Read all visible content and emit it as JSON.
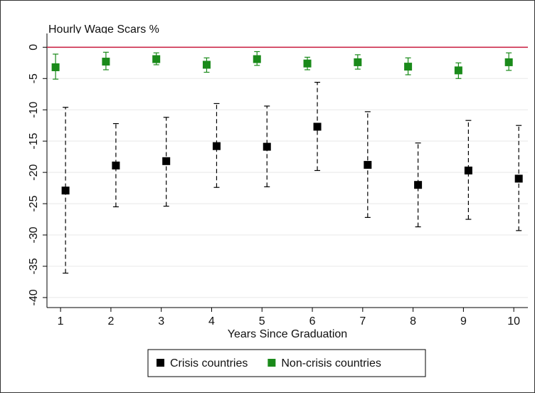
{
  "chart_data": {
    "type": "errorbar",
    "title": "Hourly Wage Scars %",
    "x_label": "Years Since Graduation",
    "x": [
      1,
      2,
      3,
      4,
      5,
      6,
      7,
      8,
      9,
      10
    ],
    "xlim": [
      0.73,
      10.28
    ],
    "xticks": [
      1,
      2,
      3,
      4,
      5,
      6,
      7,
      8,
      9,
      10
    ],
    "ylim": [
      -41.6,
      2.2
    ],
    "yticks": [
      0,
      -5,
      -10,
      -15,
      -20,
      -25,
      -30,
      -35,
      -40
    ],
    "grid": true,
    "reference_line": {
      "value": 0,
      "color": "#c8193c"
    },
    "series": [
      {
        "name": "Crisis countries",
        "color": "#000000",
        "dashed": true,
        "values": [
          -22.9,
          -18.9,
          -18.2,
          -15.8,
          -15.9,
          -12.7,
          -18.8,
          -22.0,
          -19.7,
          -21.0
        ],
        "lower": [
          -36.1,
          -25.5,
          -25.4,
          -22.4,
          -22.3,
          -19.7,
          -27.2,
          -28.7,
          -27.5,
          -29.3
        ],
        "upper": [
          -9.6,
          -12.2,
          -11.2,
          -9.0,
          -9.4,
          -5.6,
          -10.3,
          -15.3,
          -11.7,
          -12.5
        ]
      },
      {
        "name": "Non-crisis countries",
        "color": "#1a8a1a",
        "dashed": false,
        "values": [
          -3.2,
          -2.3,
          -1.9,
          -2.8,
          -1.9,
          -2.6,
          -2.4,
          -3.1,
          -3.7,
          -2.4
        ],
        "lower": [
          -5.1,
          -3.6,
          -2.8,
          -4.0,
          -2.9,
          -3.6,
          -3.5,
          -4.4,
          -5.0,
          -3.7
        ],
        "upper": [
          -1.1,
          -0.8,
          -0.9,
          -1.7,
          -0.7,
          -1.6,
          -1.2,
          -1.7,
          -2.5,
          -0.9
        ]
      }
    ],
    "legend": "bottom"
  }
}
